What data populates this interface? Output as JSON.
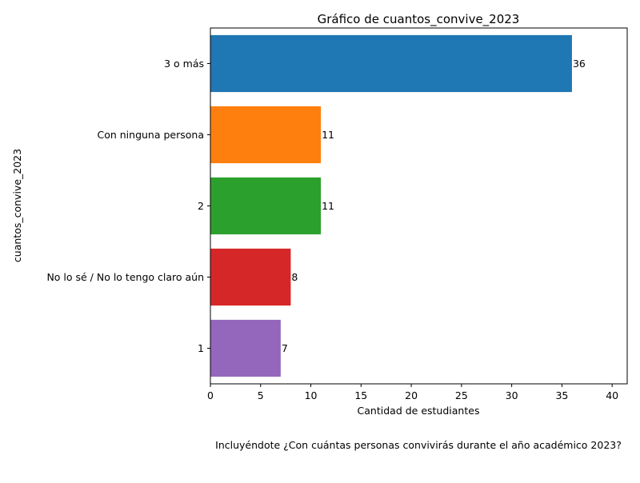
{
  "chart_data": {
    "type": "bar",
    "orientation": "horizontal",
    "title": "Gráfico de cuantos_convive_2023",
    "xlabel": "Cantidad de estudiantes",
    "ylabel": "cuantos_convive_2023",
    "categories": [
      "3 o más",
      "Con ninguna persona",
      "2",
      "No lo sé / No lo tengo claro aún",
      "1"
    ],
    "values": [
      36,
      11,
      11,
      8,
      7
    ],
    "bar_colors": [
      "#1f77b4",
      "#ff7f0e",
      "#2ca02c",
      "#d62728",
      "#9467bd"
    ],
    "xlim": [
      0,
      41.5
    ],
    "xticks": [
      0,
      5,
      10,
      15,
      20,
      25,
      30,
      35,
      40
    ],
    "data_labels": [
      "36",
      "11",
      "11",
      "8",
      "7"
    ],
    "grid": false,
    "caption": "Incluyéndote ¿Con cuántas personas convivirás durante el año académico 2023?"
  }
}
